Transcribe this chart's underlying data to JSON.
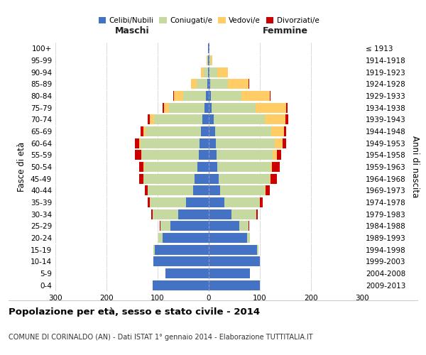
{
  "age_groups": [
    "0-4",
    "5-9",
    "10-14",
    "15-19",
    "20-24",
    "25-29",
    "30-34",
    "35-39",
    "40-44",
    "45-49",
    "50-54",
    "55-59",
    "60-64",
    "65-69",
    "70-74",
    "75-79",
    "80-84",
    "85-89",
    "90-94",
    "95-99",
    "100+"
  ],
  "birth_years": [
    "2009-2013",
    "2004-2008",
    "1999-2003",
    "1994-1998",
    "1989-1993",
    "1984-1988",
    "1979-1983",
    "1974-1978",
    "1969-1973",
    "1964-1968",
    "1959-1963",
    "1954-1958",
    "1949-1953",
    "1944-1948",
    "1939-1943",
    "1934-1938",
    "1929-1933",
    "1924-1928",
    "1919-1923",
    "1914-1918",
    "≤ 1913"
  ],
  "male_celibe": [
    110,
    85,
    108,
    105,
    90,
    75,
    60,
    45,
    30,
    28,
    22,
    20,
    18,
    15,
    12,
    8,
    5,
    3,
    2,
    1,
    1
  ],
  "male_coniugato": [
    0,
    0,
    1,
    3,
    8,
    20,
    50,
    70,
    90,
    100,
    105,
    110,
    115,
    108,
    95,
    70,
    45,
    20,
    8,
    2,
    0
  ],
  "male_vedovo": [
    0,
    0,
    0,
    0,
    0,
    0,
    0,
    0,
    0,
    0,
    1,
    2,
    3,
    5,
    8,
    10,
    18,
    12,
    5,
    1,
    0
  ],
  "male_divorziato": [
    0,
    0,
    0,
    0,
    0,
    1,
    3,
    5,
    5,
    8,
    8,
    12,
    8,
    5,
    5,
    2,
    1,
    0,
    0,
    0,
    0
  ],
  "female_celibe": [
    100,
    80,
    100,
    95,
    75,
    60,
    45,
    30,
    22,
    20,
    16,
    15,
    14,
    12,
    10,
    6,
    4,
    3,
    2,
    1,
    1
  ],
  "female_coniugato": [
    0,
    0,
    0,
    2,
    6,
    18,
    48,
    70,
    88,
    100,
    105,
    110,
    115,
    110,
    100,
    85,
    60,
    35,
    15,
    3,
    0
  ],
  "female_vedovo": [
    0,
    0,
    0,
    0,
    0,
    0,
    0,
    0,
    1,
    1,
    3,
    8,
    15,
    25,
    40,
    60,
    55,
    40,
    20,
    3,
    0
  ],
  "female_divorziato": [
    0,
    0,
    0,
    0,
    0,
    1,
    3,
    5,
    8,
    12,
    15,
    8,
    8,
    5,
    5,
    3,
    2,
    1,
    0,
    0,
    0
  ],
  "colors": {
    "celibe": "#4472C4",
    "coniugato": "#C5D9A0",
    "vedovo": "#FFCC66",
    "divorziato": "#CC0000"
  },
  "title": "Popolazione per età, sesso e stato civile - 2014",
  "subtitle": "COMUNE DI CORINALDO (AN) - Dati ISTAT 1° gennaio 2014 - Elaborazione TUTTITALIA.IT",
  "xlabel_left": "Maschi",
  "xlabel_right": "Femmine",
  "ylabel_left": "Fasce di età",
  "ylabel_right": "Anni di nascita",
  "xlim": 300,
  "background_color": "#ffffff",
  "grid_color": "#cccccc"
}
